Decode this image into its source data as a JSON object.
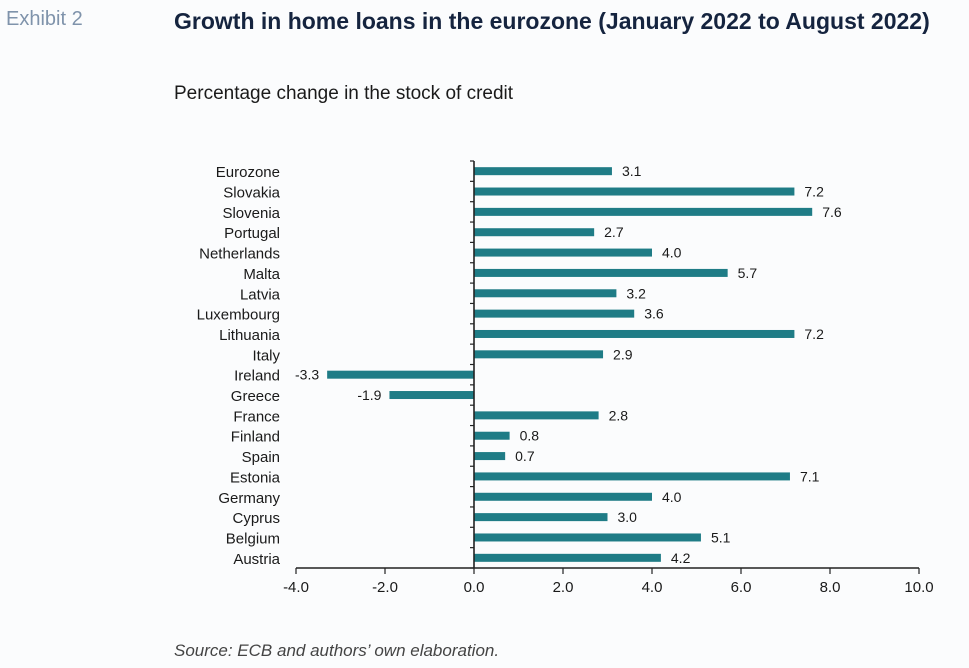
{
  "header": {
    "exhibit": "Exhibit 2",
    "title": "Growth in home loans in the eurozone (January 2022 to August 2022)",
    "subtitle": "Percentage change in the stock of credit"
  },
  "footer": {
    "source": "Source: ECB and authors’ own elaboration."
  },
  "colors": {
    "bar": "#1f7c86",
    "axis": "#222222"
  },
  "chart_data": {
    "type": "bar",
    "orientation": "horizontal",
    "categories": [
      "Eurozone",
      "Slovakia",
      "Slovenia",
      "Portugal",
      "Netherlands",
      "Malta",
      "Latvia",
      "Luxembourg",
      "Lithuania",
      "Italy",
      "Ireland",
      "Greece",
      "France",
      "Finland",
      "Spain",
      "Estonia",
      "Germany",
      "Cyprus",
      "Belgium",
      "Austria"
    ],
    "values": [
      3.1,
      7.2,
      7.6,
      2.7,
      4.0,
      5.7,
      3.2,
      3.6,
      7.2,
      2.9,
      -3.3,
      -1.9,
      2.8,
      0.8,
      0.7,
      7.1,
      4.0,
      3.0,
      5.1,
      4.2
    ],
    "value_labels": [
      "3.1",
      "7.2",
      "7.6",
      "2.7",
      "4.0",
      "5.7",
      "3.2",
      "3.6",
      "7.2",
      "2.9",
      "-3.3",
      "-1.9",
      "2.8",
      "0.8",
      "0.7",
      "7.1",
      "4.0",
      "3.0",
      "5.1",
      "4.2"
    ],
    "xlim": [
      -4.0,
      10.0
    ],
    "xticks": [
      "-4.0",
      "-2.0",
      "0.0",
      "2.0",
      "4.0",
      "6.0",
      "8.0",
      "10.0"
    ],
    "grid": false,
    "legend": "none"
  }
}
